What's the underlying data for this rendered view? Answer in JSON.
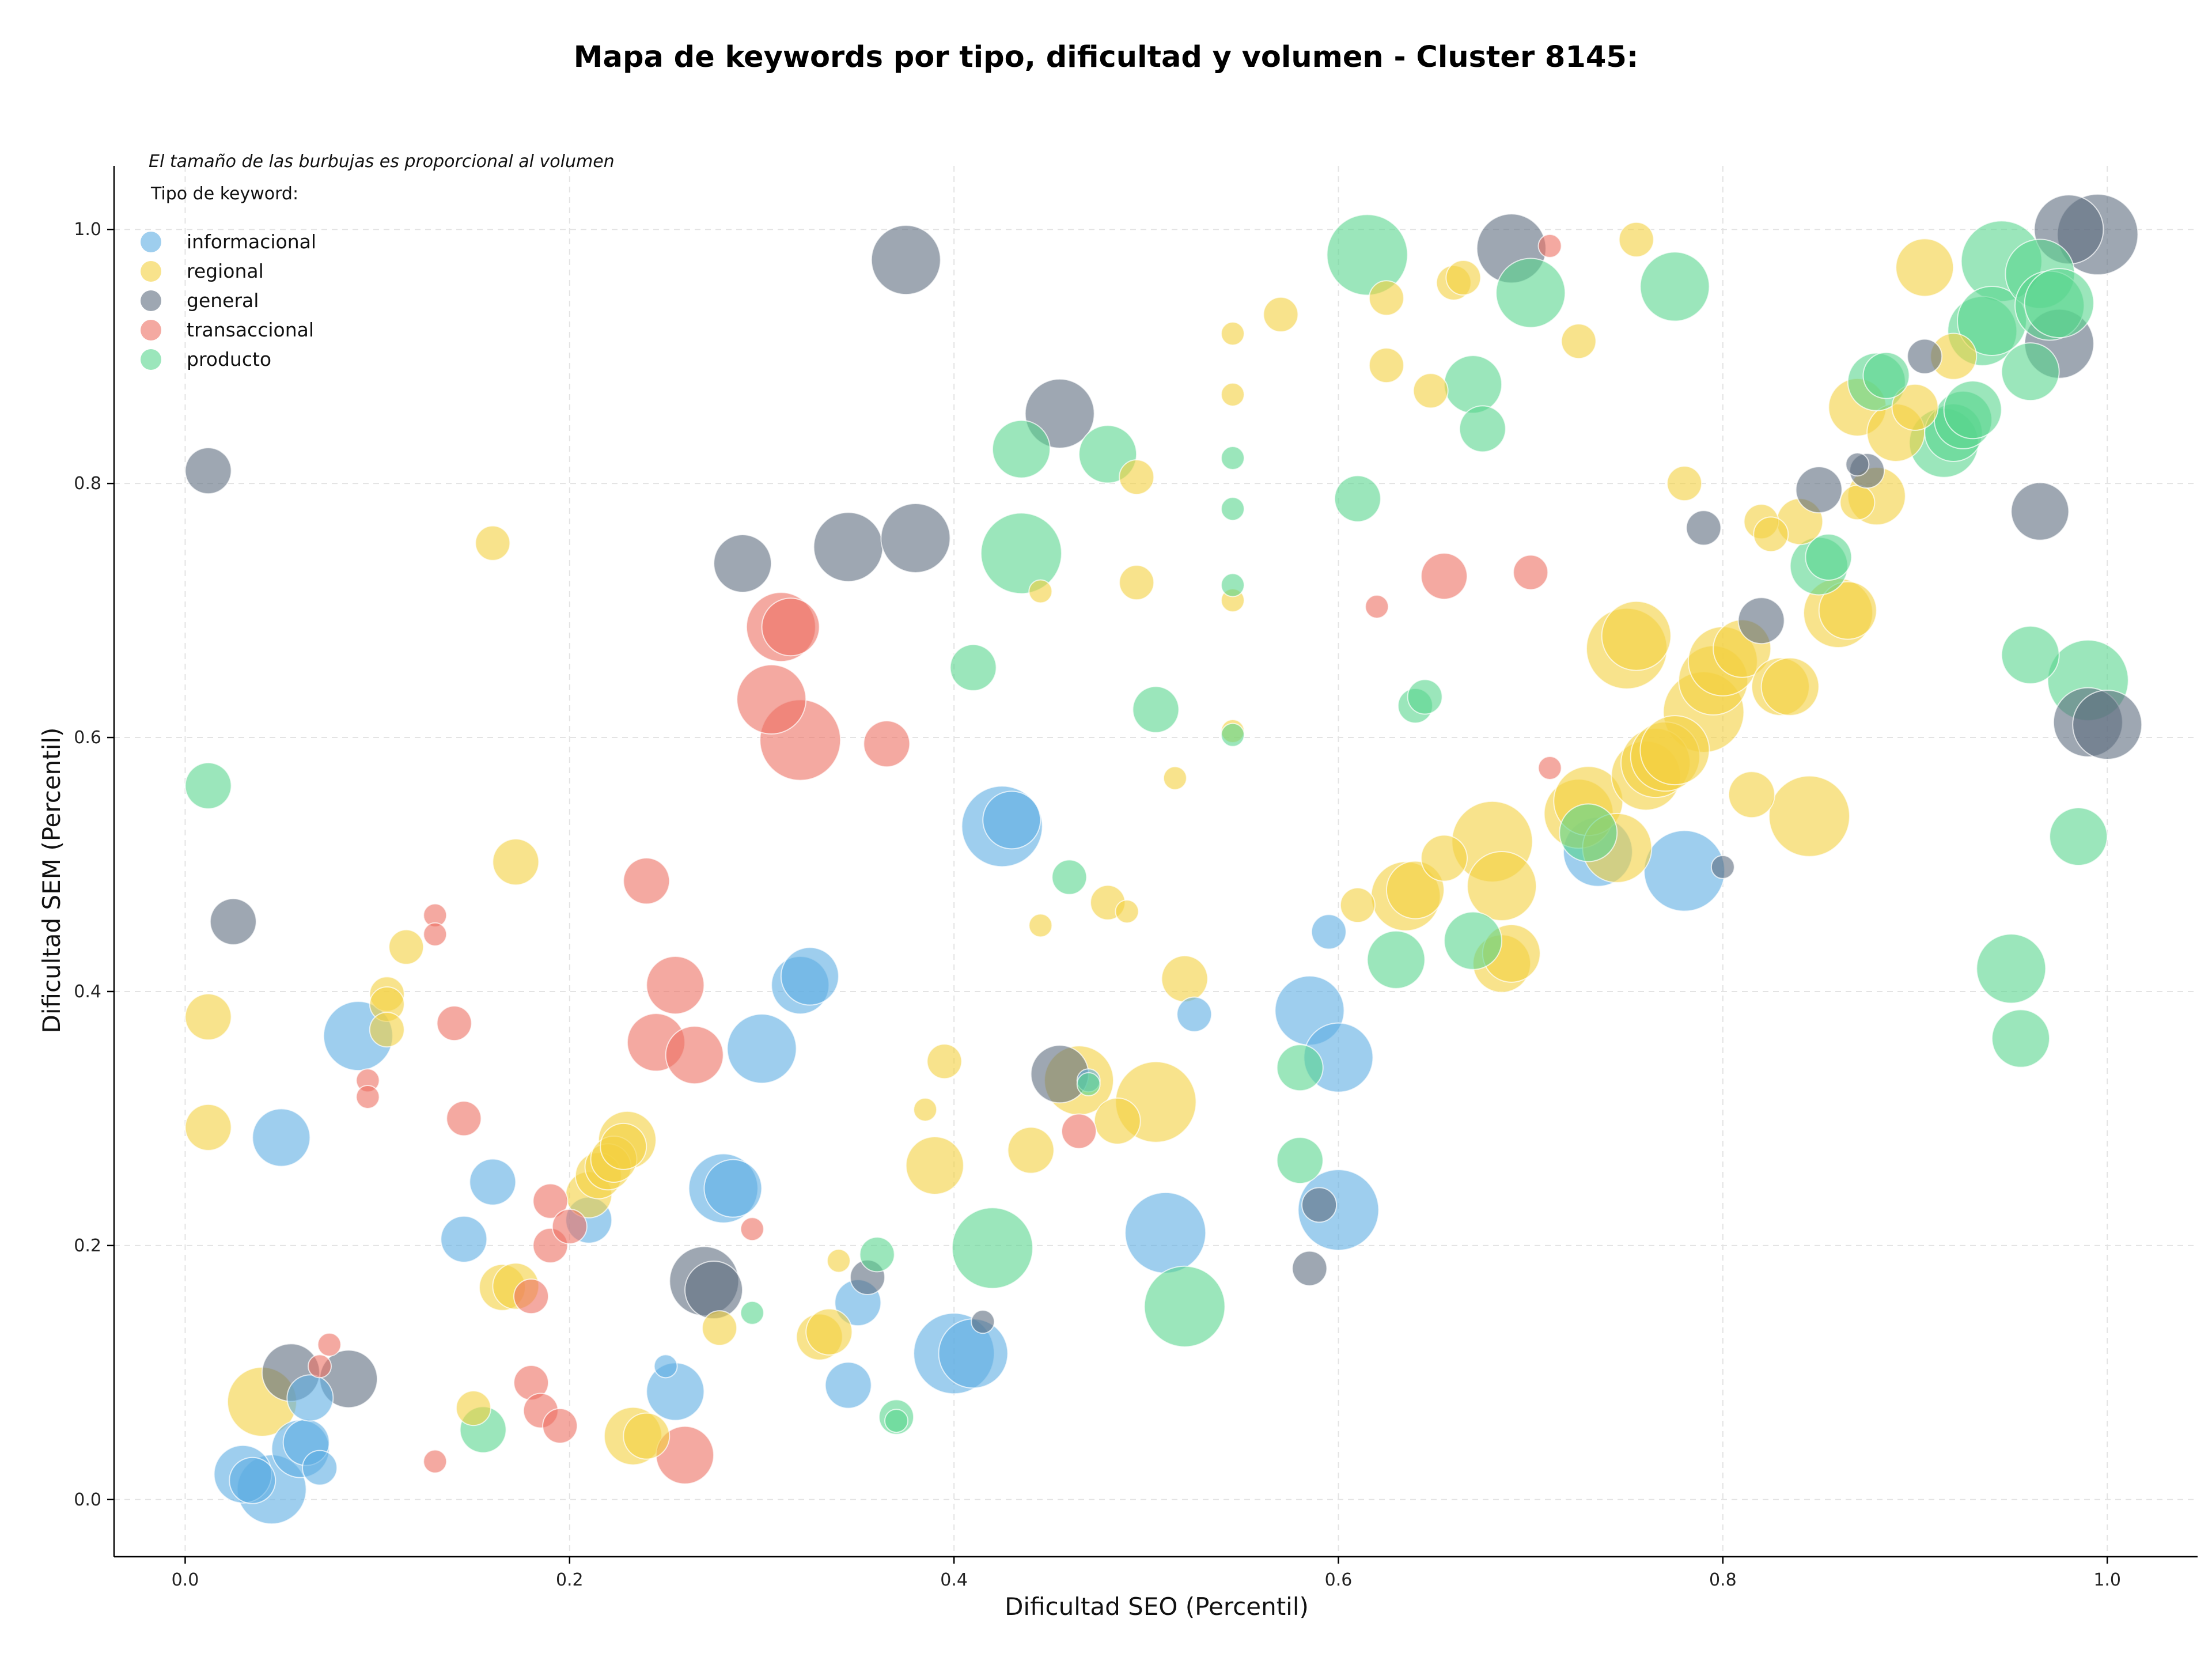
{
  "chart_data": {
    "type": "scatter",
    "title": "Mapa de keywords por tipo, dificultad y volumen - Cluster 8145:",
    "xlabel": "Dificultad SEO (Percentil)",
    "ylabel": "Dificultad SEM (Percentil)",
    "xlim": [
      -0.037,
      1.047
    ],
    "ylim": [
      -0.045,
      1.05
    ],
    "xticks": [
      0.0,
      0.2,
      0.4,
      0.6,
      0.8,
      1.0
    ],
    "yticks": [
      0.0,
      0.2,
      0.4,
      0.6,
      0.8,
      1.0
    ],
    "tick_labels_x": [
      "0.0",
      "0.2",
      "0.4",
      "0.6",
      "0.8",
      "1.0"
    ],
    "tick_labels_y": [
      "0.0",
      "0.2",
      "0.4",
      "0.6",
      "0.8",
      "1.0"
    ],
    "grid": true,
    "size_note": "El tamaño de las burbujas es proporcional al volumen",
    "legend_title": "Tipo de keyword:",
    "legend_position": "top-left",
    "series": [
      {
        "name": "informacional",
        "color": "#5dade2",
        "points": [
          [
            0.03,
            0.02,
            4
          ],
          [
            0.035,
            0.015,
            3
          ],
          [
            0.045,
            0.008,
            5
          ],
          [
            0.05,
            0.285,
            4
          ],
          [
            0.06,
            0.04,
            4
          ],
          [
            0.063,
            0.045,
            3
          ],
          [
            0.065,
            0.08,
            3
          ],
          [
            0.07,
            0.025,
            2
          ],
          [
            0.09,
            0.365,
            5
          ],
          [
            0.145,
            0.205,
            3
          ],
          [
            0.16,
            0.25,
            3
          ],
          [
            0.21,
            0.22,
            3
          ],
          [
            0.255,
            0.085,
            4
          ],
          [
            0.25,
            0.105,
            1
          ],
          [
            0.28,
            0.245,
            5
          ],
          [
            0.285,
            0.245,
            4
          ],
          [
            0.3,
            0.355,
            5
          ],
          [
            0.32,
            0.405,
            4
          ],
          [
            0.325,
            0.412,
            4
          ],
          [
            0.345,
            0.09,
            3
          ],
          [
            0.35,
            0.155,
            3
          ],
          [
            0.4,
            0.115,
            6
          ],
          [
            0.41,
            0.115,
            5
          ],
          [
            0.425,
            0.53,
            6
          ],
          [
            0.43,
            0.535,
            4
          ],
          [
            0.47,
            0.33,
            1
          ],
          [
            0.51,
            0.21,
            6
          ],
          [
            0.525,
            0.382,
            2
          ],
          [
            0.585,
            0.385,
            5
          ],
          [
            0.595,
            0.447,
            2
          ],
          [
            0.6,
            0.348,
            5
          ],
          [
            0.6,
            0.228,
            6
          ],
          [
            0.735,
            0.51,
            5
          ],
          [
            0.78,
            0.495,
            6
          ]
        ]
      },
      {
        "name": "regional",
        "color": "#f4d03f",
        "points": [
          [
            0.012,
            0.38,
            3
          ],
          [
            0.012,
            0.293,
            3
          ],
          [
            0.04,
            0.077,
            5
          ],
          [
            0.105,
            0.398,
            2
          ],
          [
            0.105,
            0.39,
            2
          ],
          [
            0.105,
            0.37,
            2
          ],
          [
            0.115,
            0.435,
            2
          ],
          [
            0.15,
            0.072,
            2
          ],
          [
            0.16,
            0.753,
            2
          ],
          [
            0.165,
            0.167,
            3
          ],
          [
            0.172,
            0.502,
            3
          ],
          [
            0.172,
            0.168,
            3
          ],
          [
            0.21,
            0.24,
            3
          ],
          [
            0.215,
            0.255,
            3
          ],
          [
            0.22,
            0.262,
            3
          ],
          [
            0.223,
            0.268,
            3
          ],
          [
            0.228,
            0.278,
            3
          ],
          [
            0.23,
            0.283,
            4
          ],
          [
            0.233,
            0.05,
            4
          ],
          [
            0.24,
            0.05,
            3
          ],
          [
            0.278,
            0.135,
            2
          ],
          [
            0.33,
            0.128,
            3
          ],
          [
            0.335,
            0.132,
            3
          ],
          [
            0.34,
            0.188,
            1
          ],
          [
            0.385,
            0.307,
            1
          ],
          [
            0.39,
            0.263,
            4
          ],
          [
            0.395,
            0.345,
            2
          ],
          [
            0.44,
            0.275,
            3
          ],
          [
            0.445,
            0.715,
            1
          ],
          [
            0.445,
            0.452,
            1
          ],
          [
            0.465,
            0.33,
            5
          ],
          [
            0.48,
            0.47,
            2
          ],
          [
            0.485,
            0.298,
            3
          ],
          [
            0.49,
            0.463,
            1
          ],
          [
            0.495,
            0.722,
            2
          ],
          [
            0.495,
            0.805,
            2
          ],
          [
            0.505,
            0.313,
            6
          ],
          [
            0.515,
            0.568,
            1
          ],
          [
            0.52,
            0.41,
            3
          ],
          [
            0.545,
            0.918,
            1
          ],
          [
            0.545,
            0.87,
            1
          ],
          [
            0.545,
            0.708,
            1
          ],
          [
            0.545,
            0.605,
            1
          ],
          [
            0.57,
            0.933,
            2
          ],
          [
            0.61,
            0.468,
            2
          ],
          [
            0.625,
            0.946,
            2
          ],
          [
            0.625,
            0.893,
            2
          ],
          [
            0.635,
            0.475,
            5
          ],
          [
            0.64,
            0.48,
            4
          ],
          [
            0.648,
            0.873,
            2
          ],
          [
            0.655,
            0.505,
            3
          ],
          [
            0.66,
            0.958,
            2
          ],
          [
            0.665,
            0.962,
            2
          ],
          [
            0.68,
            0.518,
            6
          ],
          [
            0.685,
            0.483,
            5
          ],
          [
            0.685,
            0.422,
            4
          ],
          [
            0.69,
            0.43,
            4
          ],
          [
            0.725,
            0.912,
            2
          ],
          [
            0.725,
            0.54,
            5
          ],
          [
            0.73,
            0.55,
            5
          ],
          [
            0.745,
            0.513,
            5
          ],
          [
            0.75,
            0.67,
            6
          ],
          [
            0.755,
            0.68,
            5
          ],
          [
            0.755,
            0.992,
            2
          ],
          [
            0.76,
            0.57,
            5
          ],
          [
            0.765,
            0.58,
            5
          ],
          [
            0.77,
            0.585,
            5
          ],
          [
            0.775,
            0.59,
            5
          ],
          [
            0.78,
            0.8,
            2
          ],
          [
            0.79,
            0.62,
            6
          ],
          [
            0.795,
            0.645,
            5
          ],
          [
            0.8,
            0.66,
            5
          ],
          [
            0.81,
            0.67,
            4
          ],
          [
            0.815,
            0.555,
            3
          ],
          [
            0.82,
            0.77,
            2
          ],
          [
            0.825,
            0.76,
            2
          ],
          [
            0.83,
            0.64,
            4
          ],
          [
            0.835,
            0.64,
            4
          ],
          [
            0.84,
            0.77,
            3
          ],
          [
            0.845,
            0.538,
            6
          ],
          [
            0.86,
            0.698,
            5
          ],
          [
            0.865,
            0.7,
            4
          ],
          [
            0.87,
            0.86,
            4
          ],
          [
            0.87,
            0.785,
            2
          ],
          [
            0.88,
            0.79,
            4
          ],
          [
            0.89,
            0.84,
            4
          ],
          [
            0.9,
            0.86,
            3
          ],
          [
            0.905,
            0.97,
            4
          ],
          [
            0.92,
            0.9,
            3
          ]
        ]
      },
      {
        "name": "general",
        "color": "#5d6d7e",
        "points": [
          [
            0.012,
            0.81,
            3
          ],
          [
            0.025,
            0.455,
            3
          ],
          [
            0.055,
            0.1,
            4
          ],
          [
            0.085,
            0.095,
            4
          ],
          [
            0.27,
            0.172,
            5
          ],
          [
            0.275,
            0.165,
            4
          ],
          [
            0.29,
            0.737,
            4
          ],
          [
            0.345,
            0.75,
            5
          ],
          [
            0.355,
            0.175,
            2
          ],
          [
            0.375,
            0.976,
            5
          ],
          [
            0.38,
            0.757,
            5
          ],
          [
            0.415,
            0.14,
            1
          ],
          [
            0.455,
            0.855,
            5
          ],
          [
            0.455,
            0.335,
            4
          ],
          [
            0.59,
            0.232,
            2
          ],
          [
            0.585,
            0.182,
            2
          ],
          [
            0.69,
            0.985,
            5
          ],
          [
            0.79,
            0.765,
            2
          ],
          [
            0.8,
            0.498,
            1
          ],
          [
            0.82,
            0.692,
            3
          ],
          [
            0.85,
            0.795,
            3
          ],
          [
            0.87,
            0.815,
            1
          ],
          [
            0.875,
            0.81,
            2
          ],
          [
            0.905,
            0.9,
            2
          ],
          [
            0.965,
            0.778,
            4
          ],
          [
            0.975,
            0.91,
            5
          ],
          [
            0.98,
            1.0,
            5
          ],
          [
            0.995,
            0.996,
            6
          ],
          [
            0.99,
            0.612,
            5
          ],
          [
            1.0,
            0.61,
            5
          ]
        ]
      },
      {
        "name": "transaccional",
        "color": "#ec7063",
        "points": [
          [
            0.07,
            0.105,
            1
          ],
          [
            0.075,
            0.122,
            1
          ],
          [
            0.095,
            0.33,
            1
          ],
          [
            0.095,
            0.317,
            1
          ],
          [
            0.13,
            0.03,
            1
          ],
          [
            0.13,
            0.46,
            1
          ],
          [
            0.13,
            0.445,
            1
          ],
          [
            0.14,
            0.375,
            2
          ],
          [
            0.145,
            0.3,
            2
          ],
          [
            0.18,
            0.16,
            2
          ],
          [
            0.18,
            0.092,
            2
          ],
          [
            0.185,
            0.07,
            2
          ],
          [
            0.19,
            0.235,
            2
          ],
          [
            0.19,
            0.2,
            2
          ],
          [
            0.195,
            0.058,
            2
          ],
          [
            0.2,
            0.215,
            2
          ],
          [
            0.24,
            0.487,
            3
          ],
          [
            0.245,
            0.36,
            4
          ],
          [
            0.255,
            0.405,
            4
          ],
          [
            0.26,
            0.035,
            4
          ],
          [
            0.265,
            0.35,
            4
          ],
          [
            0.295,
            0.213,
            1
          ],
          [
            0.305,
            0.63,
            5
          ],
          [
            0.31,
            0.687,
            5
          ],
          [
            0.315,
            0.687,
            4
          ],
          [
            0.32,
            0.598,
            6
          ],
          [
            0.365,
            0.595,
            3
          ],
          [
            0.465,
            0.29,
            2
          ],
          [
            0.62,
            0.703,
            1
          ],
          [
            0.655,
            0.727,
            3
          ],
          [
            0.7,
            0.73,
            2
          ],
          [
            0.71,
            0.987,
            1
          ],
          [
            0.71,
            0.576,
            1
          ]
        ]
      },
      {
        "name": "producto",
        "color": "#58d68d",
        "points": [
          [
            0.012,
            0.562,
            3
          ],
          [
            0.155,
            0.055,
            3
          ],
          [
            0.295,
            0.147,
            1
          ],
          [
            0.36,
            0.193,
            2
          ],
          [
            0.37,
            0.065,
            2
          ],
          [
            0.37,
            0.062,
            1
          ],
          [
            0.41,
            0.655,
            3
          ],
          [
            0.42,
            0.198,
            6
          ],
          [
            0.435,
            0.827,
            4
          ],
          [
            0.435,
            0.745,
            6
          ],
          [
            0.46,
            0.49,
            2
          ],
          [
            0.47,
            0.327,
            1
          ],
          [
            0.48,
            0.823,
            4
          ],
          [
            0.505,
            0.622,
            3
          ],
          [
            0.52,
            0.152,
            6
          ],
          [
            0.545,
            0.82,
            1
          ],
          [
            0.545,
            0.78,
            1
          ],
          [
            0.545,
            0.72,
            1
          ],
          [
            0.545,
            0.602,
            1
          ],
          [
            0.58,
            0.34,
            3
          ],
          [
            0.58,
            0.267,
            3
          ],
          [
            0.61,
            0.788,
            3
          ],
          [
            0.615,
            0.98,
            6
          ],
          [
            0.63,
            0.425,
            4
          ],
          [
            0.64,
            0.625,
            2
          ],
          [
            0.645,
            0.632,
            2
          ],
          [
            0.67,
            0.44,
            4
          ],
          [
            0.67,
            0.878,
            4
          ],
          [
            0.675,
            0.843,
            3
          ],
          [
            0.7,
            0.95,
            5
          ],
          [
            0.73,
            0.525,
            4
          ],
          [
            0.775,
            0.955,
            5
          ],
          [
            0.85,
            0.735,
            4
          ],
          [
            0.855,
            0.742,
            3
          ],
          [
            0.88,
            0.88,
            4
          ],
          [
            0.885,
            0.885,
            3
          ],
          [
            0.915,
            0.832,
            5
          ],
          [
            0.92,
            0.84,
            4
          ],
          [
            0.925,
            0.85,
            4
          ],
          [
            0.93,
            0.858,
            4
          ],
          [
            0.935,
            0.92,
            5
          ],
          [
            0.94,
            0.928,
            5
          ],
          [
            0.945,
            0.975,
            6
          ],
          [
            0.95,
            0.418,
            5
          ],
          [
            0.955,
            0.363,
            4
          ],
          [
            0.96,
            0.888,
            4
          ],
          [
            0.96,
            0.665,
            4
          ],
          [
            0.965,
            0.965,
            5
          ],
          [
            0.97,
            0.94,
            5
          ],
          [
            0.975,
            0.942,
            5
          ],
          [
            0.99,
            0.645,
            6
          ],
          [
            0.985,
            0.522,
            4
          ]
        ]
      }
    ]
  }
}
